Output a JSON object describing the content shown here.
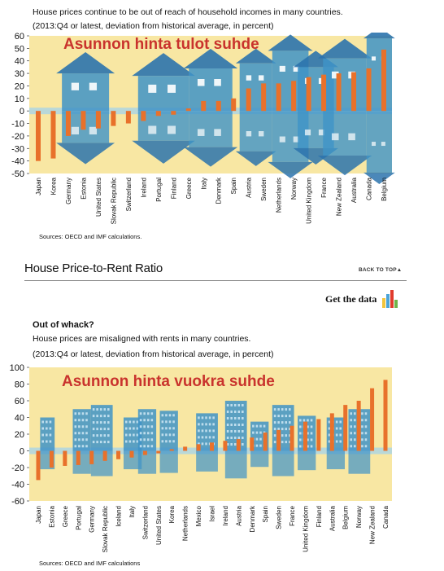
{
  "top": {
    "caption1": "House prices continue to be out of reach of household incomes in many countries.",
    "caption2": "(2013:Q4 or latest, deviation from historical average, in percent)",
    "source": "Sources: OECD and IMF calculations."
  },
  "section": {
    "title": "House Price-to-Rent Ratio",
    "back_to_top": "BACK TO TOP▲",
    "get_the_data": "Get the data"
  },
  "bottom": {
    "subtitle": "Out of whack?",
    "caption1": "House prices are misaligned with rents in many countries.",
    "caption2": "(2013:Q4 or latest, deviation from historical average, in percent)",
    "source": "Sources: OECD and IMF calculations"
  },
  "colors": {
    "bar": "#e8712b",
    "bg": "#f8e7a3",
    "house": "#3f93c7",
    "house_dark": "#2b73ad",
    "sky": "#a9d4e6"
  },
  "chart_data": [
    {
      "type": "bar",
      "title": "Asunnon hinta tulot suhde",
      "categories": [
        "Japan",
        "Korea",
        "Germany",
        "Estonia",
        "United States",
        "Slovak Republic",
        "Switzerland",
        "Ireland",
        "Portugal",
        "Finland",
        "Greece",
        "Italy",
        "Denmark",
        "Spain",
        "Austria",
        "Sweden",
        "Netherlands",
        "Norway",
        "United Kingdom",
        "France",
        "New Zealand",
        "Australia",
        "Canada",
        "Belgium"
      ],
      "values": [
        -40,
        -38,
        -20,
        -15,
        -14,
        -12,
        -10,
        -8,
        -4,
        -3,
        2,
        8,
        8,
        10,
        18,
        22,
        22,
        24,
        27,
        29,
        30,
        31,
        34,
        49
      ],
      "ylim": [
        -50,
        60
      ],
      "yticks": [
        60,
        50,
        40,
        30,
        20,
        10,
        0,
        -10,
        -20,
        -30,
        -40,
        -50
      ],
      "grid": false
    },
    {
      "type": "bar",
      "title": "Asunnon hinta vuokra suhde",
      "categories": [
        "Japan",
        "Estonia",
        "Greece",
        "Portugal",
        "Germany",
        "Slovak Republic",
        "Iceland",
        "Italy",
        "Switzerland",
        "United States",
        "Korea",
        "Netherlands",
        "Mexico",
        "Israel",
        "Ireland",
        "Austria",
        "Denmark",
        "Spain",
        "Sweden",
        "France",
        "United Kingdom",
        "Finland",
        "Australia",
        "Belgium",
        "Norway",
        "New Zealand",
        "Canada"
      ],
      "values": [
        -35,
        -20,
        -18,
        -17,
        -16,
        -12,
        -10,
        -8,
        -5,
        -3,
        2,
        5,
        8,
        10,
        12,
        14,
        16,
        22,
        25,
        30,
        35,
        38,
        45,
        55,
        60,
        75,
        85
      ],
      "ylim": [
        -60,
        100
      ],
      "yticks": [
        100,
        80,
        60,
        40,
        20,
        0,
        -20,
        -40,
        -60
      ],
      "grid": false
    }
  ]
}
